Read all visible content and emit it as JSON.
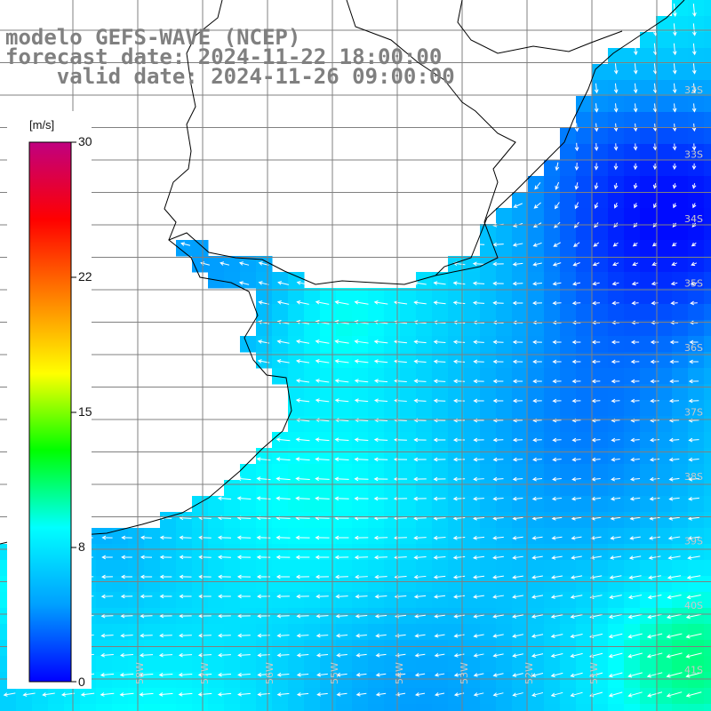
{
  "title": {
    "line1": "modelo GEFS-WAVE (NCEP)",
    "line2": "forecast date: 2024-11-22 18:00:00",
    "line3": "    valid date: 2024-11-26 09:00:00"
  },
  "colorbar": {
    "unit": "[m/s]",
    "labels": [
      "30",
      "22",
      "15",
      "8",
      "0"
    ],
    "min": 0,
    "max": 30,
    "stops": [
      "#0000ff",
      "#00a0ff",
      "#00ffff",
      "#00ff00",
      "#ffff00",
      "#ff8000",
      "#ff0000",
      "#c00080"
    ]
  },
  "latitude_labels": [
    "32S",
    "33S",
    "34S",
    "35S",
    "36S",
    "37S",
    "38S",
    "39S",
    "40S",
    "41S"
  ],
  "longitude_labels": [
    "58W",
    "57W",
    "56W",
    "55W",
    "54W",
    "53W",
    "52W",
    "51W"
  ],
  "colors": {
    "land": "#ffffff",
    "coast": "#000000",
    "grid": "#808080",
    "arrows": "#ffffff",
    "title": "#808080"
  }
}
